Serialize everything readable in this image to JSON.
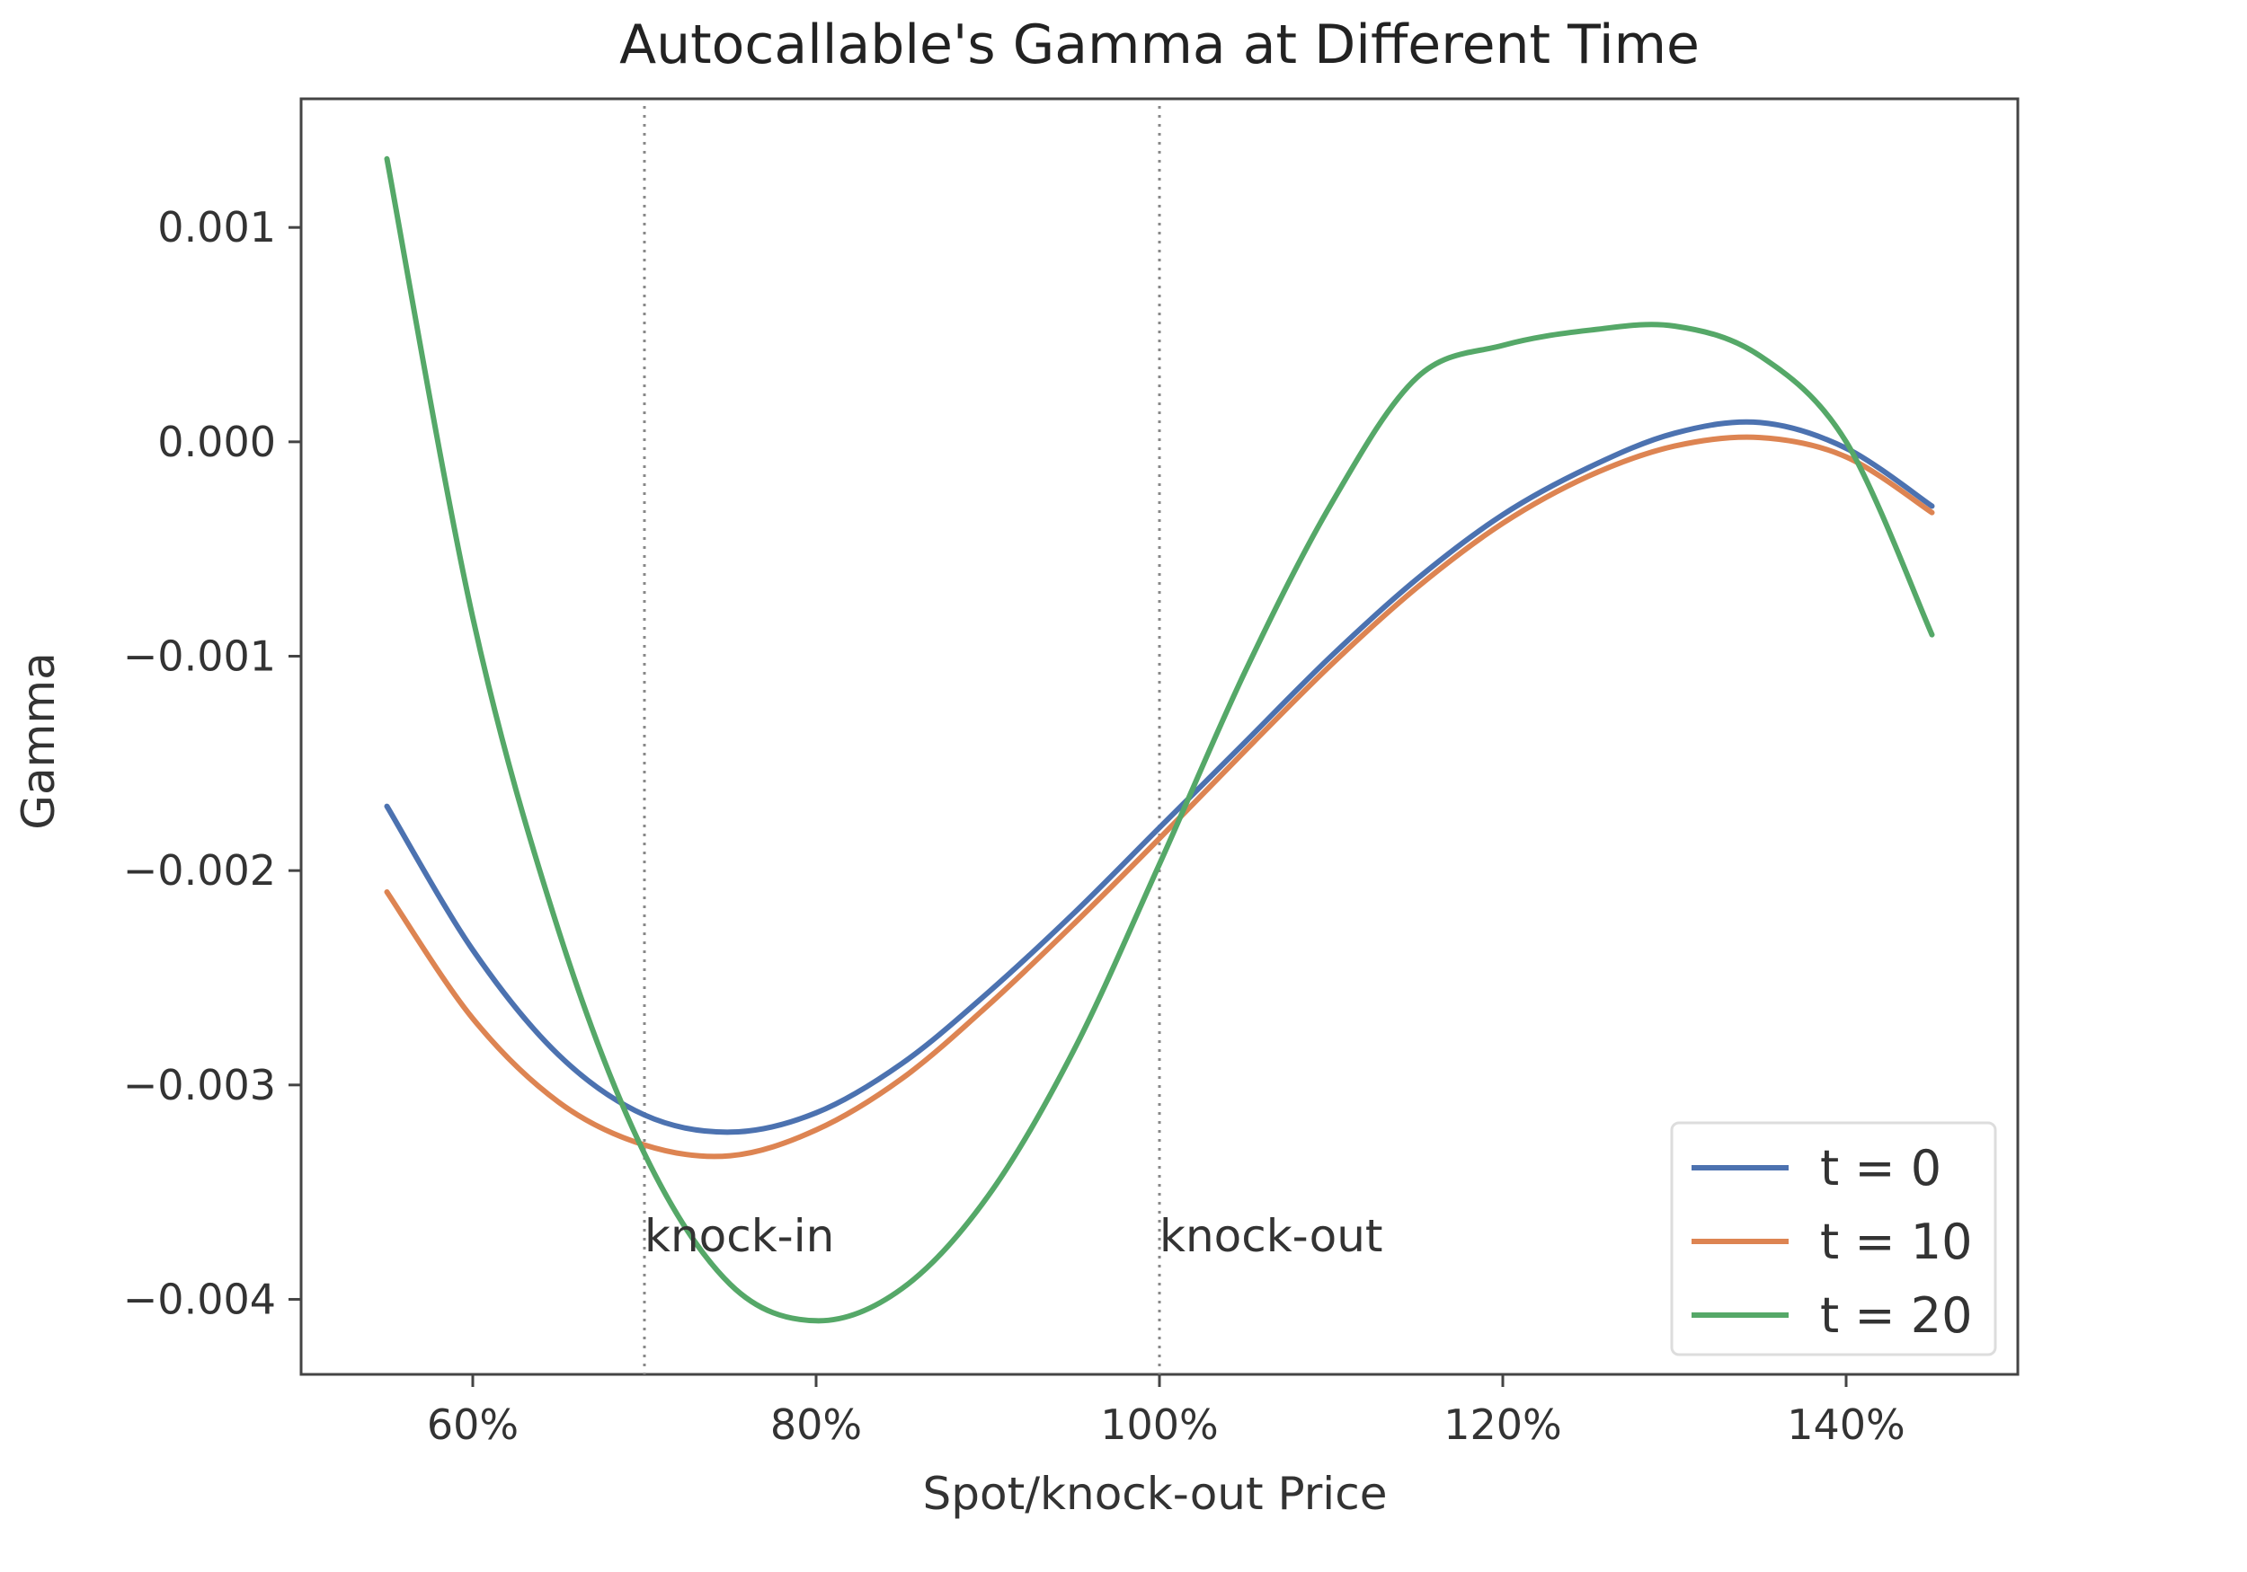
{
  "chart_data": {
    "type": "line",
    "title": "Autocallable's Gamma at Different Time",
    "xlabel": "Spot/knock-out Price",
    "ylabel": "Gamma",
    "xlim": [
      50,
      150
    ],
    "ylim": [
      -0.00435,
      0.0016
    ],
    "x_ticks": [
      {
        "value": 60,
        "label": "60%"
      },
      {
        "value": 80,
        "label": "80%"
      },
      {
        "value": 100,
        "label": "100%"
      },
      {
        "value": 120,
        "label": "120%"
      },
      {
        "value": 140,
        "label": "140%"
      }
    ],
    "y_ticks": [
      {
        "value": 0.001,
        "label": "0.001"
      },
      {
        "value": 0.0,
        "label": "0.000"
      },
      {
        "value": -0.001,
        "label": "−0.001"
      },
      {
        "value": -0.002,
        "label": "−0.002"
      },
      {
        "value": -0.003,
        "label": "−0.003"
      },
      {
        "value": -0.004,
        "label": "−0.004"
      }
    ],
    "x": [
      55,
      60,
      65,
      70,
      75,
      80,
      85,
      90,
      95,
      100,
      105,
      110,
      115,
      120,
      125,
      130,
      135,
      140,
      145
    ],
    "series": [
      {
        "name": "t = 0",
        "color": "#4c72b0",
        "values": [
          -0.0017,
          -0.00237,
          -0.00286,
          -0.00314,
          -0.00322,
          -0.00313,
          -0.0029,
          -0.00257,
          -0.0022,
          -0.0018,
          -0.0014,
          -0.001,
          -0.00064,
          -0.00034,
          -0.00012,
          4e-05,
          9e-05,
          -3e-05,
          -0.0003
        ]
      },
      {
        "name": "t = 10",
        "color": "#dd8452",
        "values": [
          -0.0021,
          -0.00269,
          -0.00308,
          -0.00328,
          -0.00333,
          -0.00321,
          -0.00297,
          -0.00263,
          -0.00225,
          -0.00185,
          -0.00144,
          -0.00104,
          -0.00068,
          -0.00038,
          -0.00016,
          -2e-05,
          2e-05,
          -7e-05,
          -0.00033
        ]
      },
      {
        "name": "t = 20",
        "color": "#55a868",
        "values": [
          0.00132,
          -0.00082,
          -0.00228,
          -0.00332,
          -0.00393,
          -0.0041,
          -0.00395,
          -0.00352,
          -0.00284,
          -0.00197,
          -0.00107,
          -0.00029,
          0.0003,
          0.00045,
          0.00052,
          0.00054,
          0.0004,
          0.0,
          -0.0009
        ]
      }
    ],
    "vlines": [
      {
        "x": 70,
        "label": "knock-in"
      },
      {
        "x": 100,
        "label": "knock-out"
      }
    ],
    "legend": {
      "placement": "lower-right"
    },
    "grid": false
  }
}
